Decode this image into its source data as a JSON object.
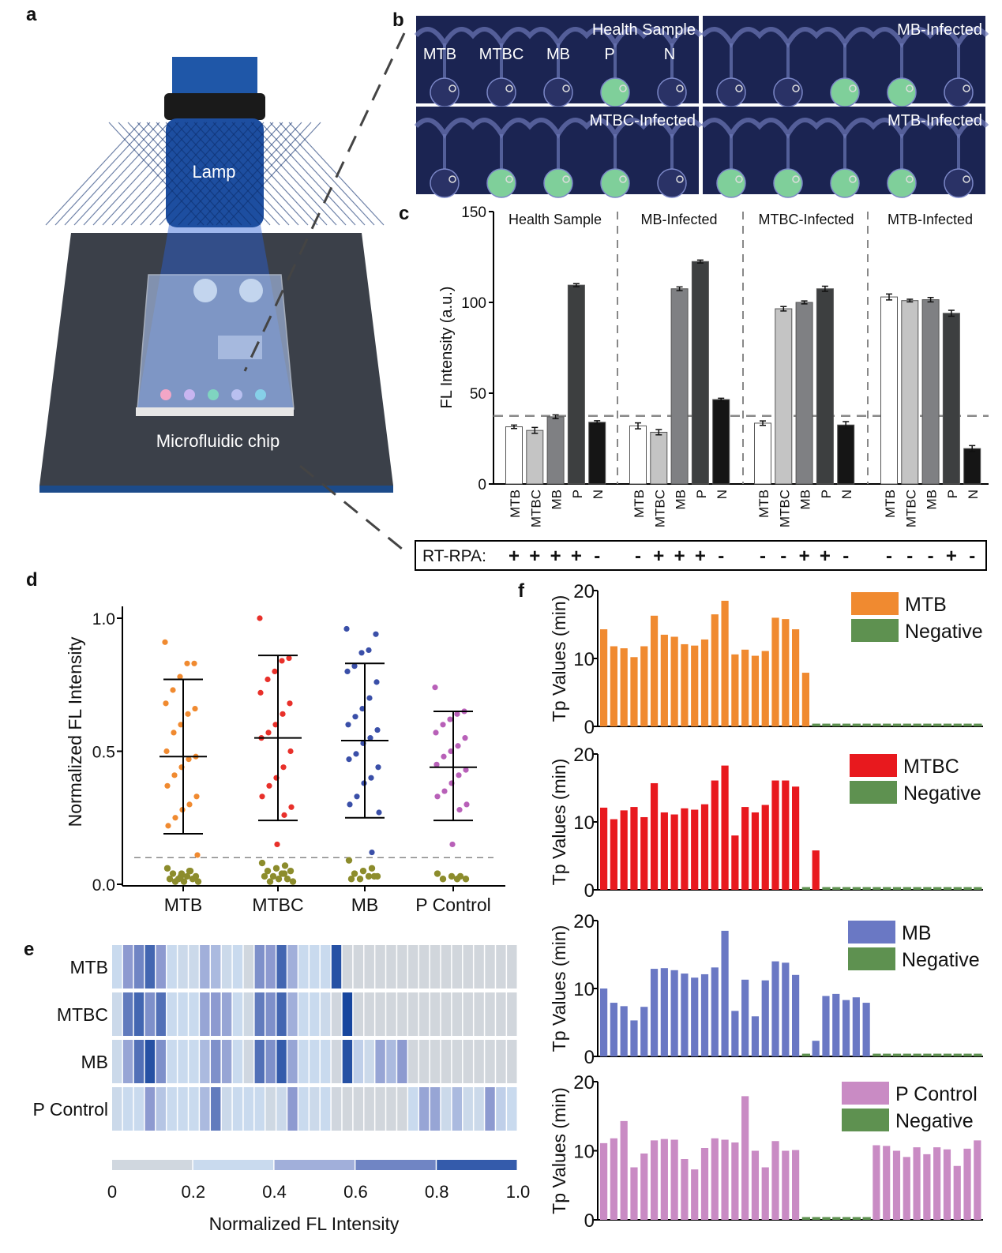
{
  "panel_letters": {
    "a": "a",
    "b": "b",
    "c": "c",
    "d": "d",
    "e": "e",
    "f": "f"
  },
  "panel_a": {
    "lamp_label": "Lamp",
    "chip_label": "Microfluidic chip"
  },
  "panel_b": {
    "well_labels": [
      "MTB",
      "MTBC",
      "MB",
      "P",
      "N"
    ],
    "tiles": [
      {
        "title": "Health Sample",
        "green_wells": [
          false,
          false,
          false,
          true,
          false
        ]
      },
      {
        "title": "MB-Infected",
        "green_wells": [
          false,
          false,
          true,
          true,
          false
        ]
      },
      {
        "title": "MTBC-Infected",
        "green_wells": [
          false,
          true,
          true,
          true,
          false
        ]
      },
      {
        "title": "MTB-Infected",
        "green_wells": [
          true,
          true,
          true,
          true,
          false
        ]
      }
    ]
  },
  "chart_data": [
    {
      "panel": "c",
      "type": "bar",
      "ylabel": "FL Intensity (a.u.)",
      "ylim": [
        0,
        150
      ],
      "yticks": [
        0,
        50,
        100,
        150
      ],
      "threshold": 37.5,
      "categories": [
        "MTB",
        "MTBC",
        "MB",
        "P",
        "N"
      ],
      "bar_colors": [
        "#ffffff",
        "#c4c4c4",
        "#7f8083",
        "#3d3f40",
        "#151515"
      ],
      "row_label": "RT-RPA:",
      "groups": [
        {
          "name": "Health Sample",
          "values": [
            31.5,
            29.5,
            37,
            109.5,
            34
          ],
          "errors": [
            0.5,
            1.2,
            0.6,
            0.4,
            0.4
          ],
          "rt_rpa": [
            "+",
            "+",
            "+",
            "+",
            "-"
          ]
        },
        {
          "name": "MB-Infected",
          "values": [
            32,
            28.5,
            107.5,
            122.5,
            46.5
          ],
          "errors": [
            1.2,
            1,
            0.6,
            0.4,
            0.3
          ],
          "rt_rpa": [
            "-",
            "+",
            "+",
            "+",
            "-"
          ]
        },
        {
          "name": "MTBC-Infected",
          "values": [
            33.5,
            96.5,
            100,
            107.5,
            32.5
          ],
          "errors": [
            0.8,
            0.8,
            0.4,
            1,
            1.4
          ],
          "rt_rpa": [
            "-",
            "-",
            "+",
            "+",
            "-"
          ]
        },
        {
          "name": "MTB-Infected",
          "values": [
            103,
            101,
            101.5,
            94,
            19.5
          ],
          "errors": [
            1.2,
            0.3,
            0.8,
            1.2,
            1.2
          ],
          "rt_rpa": [
            "-",
            "-",
            "-",
            "+",
            "-"
          ]
        }
      ]
    },
    {
      "panel": "d",
      "type": "scatter",
      "ylabel": "Normalized FL Intensity",
      "ylim": [
        0,
        1.05
      ],
      "yticks": [
        "0.0",
        "0.5",
        "1.0"
      ],
      "threshold": 0.1,
      "negative_color": "#8c8c2c",
      "groups": [
        {
          "name": "MTB",
          "color": "#f08a30",
          "mean": 0.48,
          "sd_low": 0.19,
          "sd_high": 0.77,
          "positives": [
            0.91,
            0.83,
            0.83,
            0.78,
            0.73,
            0.68,
            0.66,
            0.64,
            0.6,
            0.57,
            0.5,
            0.48,
            0.47,
            0.44,
            0.41,
            0.37,
            0.33,
            0.3,
            0.28,
            0.25,
            0.22,
            0.11
          ],
          "negatives": [
            0.06,
            0.05,
            0.04,
            0.04,
            0.03,
            0.03,
            0.02,
            0.02,
            0.02,
            0.01,
            0.01,
            0.01,
            0.05,
            0.03
          ]
        },
        {
          "name": "MTBC",
          "color": "#e8302a",
          "mean": 0.55,
          "sd_low": 0.24,
          "sd_high": 0.86,
          "positives": [
            1.0,
            0.85,
            0.84,
            0.8,
            0.77,
            0.72,
            0.68,
            0.64,
            0.6,
            0.57,
            0.55,
            0.5,
            0.44,
            0.4,
            0.37,
            0.33,
            0.29,
            0.26,
            0.15
          ],
          "negatives": [
            0.08,
            0.07,
            0.06,
            0.05,
            0.05,
            0.04,
            0.03,
            0.03,
            0.02,
            0.02,
            0.01,
            0.01,
            0.04
          ]
        },
        {
          "name": "MB",
          "color": "#3a4fa8",
          "mean": 0.54,
          "sd_low": 0.25,
          "sd_high": 0.83,
          "positives": [
            0.96,
            0.94,
            0.88,
            0.87,
            0.82,
            0.8,
            0.76,
            0.7,
            0.66,
            0.63,
            0.6,
            0.58,
            0.55,
            0.53,
            0.49,
            0.47,
            0.44,
            0.4,
            0.38,
            0.33,
            0.3,
            0.27,
            0.12
          ],
          "negatives": [
            0.09,
            0.06,
            0.05,
            0.04,
            0.03,
            0.03,
            0.02,
            0.02,
            0.03
          ]
        },
        {
          "name": "P Control",
          "color": "#b860b8",
          "mean": 0.44,
          "sd_low": 0.24,
          "sd_high": 0.65,
          "positives": [
            0.74,
            0.65,
            0.64,
            0.62,
            0.6,
            0.57,
            0.55,
            0.52,
            0.5,
            0.48,
            0.45,
            0.43,
            0.41,
            0.38,
            0.35,
            0.33,
            0.3,
            0.28,
            0.15
          ],
          "negatives": [
            0.04,
            0.03,
            0.03,
            0.02,
            0.02,
            0.02
          ]
        }
      ]
    },
    {
      "panel": "e",
      "type": "heatmap",
      "rows": [
        "MTB",
        "MTBC",
        "MB",
        "P Control"
      ],
      "colorbar_label": "Normalized FL Intensity",
      "colorbar_ticks": [
        "0",
        "0.2",
        "0.4",
        "0.6",
        "0.8",
        "1.0"
      ],
      "colorscale": [
        "#d3d5d8",
        "#c9daee",
        "#8d9ad0",
        "#17469e"
      ],
      "values": [
        [
          0.3,
          0.6,
          0.7,
          0.85,
          0.6,
          0.3,
          0.25,
          0.25,
          0.5,
          0.45,
          0.25,
          0.3,
          0.1,
          0.65,
          0.6,
          0.85,
          0.5,
          0.3,
          0.3,
          0.3,
          0.95,
          0.05,
          0.05,
          0.05,
          0.05,
          0.05,
          0.05,
          0.05,
          0.05,
          0.05,
          0.05,
          0.05,
          0.05,
          0.05,
          0.05,
          0.05,
          0.05
        ],
        [
          0.25,
          0.75,
          0.85,
          0.65,
          0.8,
          0.3,
          0.3,
          0.3,
          0.55,
          0.6,
          0.55,
          0.3,
          0.15,
          0.75,
          0.65,
          0.85,
          0.5,
          0.3,
          0.3,
          0.25,
          0.08,
          1.0,
          0.05,
          0.05,
          0.05,
          0.05,
          0.05,
          0.05,
          0.05,
          0.05,
          0.05,
          0.05,
          0.05,
          0.05,
          0.05,
          0.05,
          0.05
        ],
        [
          0.25,
          0.55,
          0.8,
          0.95,
          0.65,
          0.3,
          0.3,
          0.3,
          0.45,
          0.65,
          0.55,
          0.3,
          0.12,
          0.8,
          0.65,
          0.9,
          0.55,
          0.3,
          0.3,
          0.3,
          0.08,
          0.95,
          0.35,
          0.25,
          0.55,
          0.45,
          0.6,
          0.05,
          0.05,
          0.05,
          0.05,
          0.05,
          0.05,
          0.05,
          0.05,
          0.05,
          0.05
        ],
        [
          0.25,
          0.3,
          0.3,
          0.6,
          0.4,
          0.3,
          0.3,
          0.3,
          0.45,
          0.75,
          0.25,
          0.3,
          0.3,
          0.3,
          0.15,
          0.25,
          0.6,
          0.3,
          0.25,
          0.3,
          0.08,
          0.05,
          0.05,
          0.05,
          0.05,
          0.05,
          0.05,
          0.3,
          0.55,
          0.55,
          0.25,
          0.45,
          0.25,
          0.25,
          0.6,
          0.35,
          0.3
        ]
      ]
    },
    {
      "panel": "f",
      "type": "bar",
      "ylabel": "Tp Values (min)",
      "ylim": [
        0,
        20
      ],
      "yticks": [
        0,
        10,
        20
      ],
      "negative_label": "Negative",
      "negative_color": "#5e9150",
      "subplots": [
        {
          "name": "MTB",
          "color": "#f08a30",
          "positive": [
            14.3,
            11.8,
            11.5,
            10.2,
            11.8,
            16.3,
            13.5,
            13.2,
            12.1,
            11.9,
            12.8,
            16.5,
            18.5,
            10.6,
            11.3,
            10.4,
            11.1,
            16,
            15.8,
            14.3,
            7.9,
            null,
            null,
            null,
            null,
            null,
            null,
            null,
            null,
            null,
            null,
            null,
            null,
            null,
            null,
            null,
            null,
            null
          ],
          "negative": [
            null,
            null,
            null,
            null,
            null,
            null,
            null,
            null,
            null,
            null,
            null,
            null,
            null,
            null,
            null,
            null,
            null,
            null,
            null,
            null,
            null,
            0.4,
            0.4,
            0.4,
            0.4,
            0.4,
            0.4,
            0.4,
            0.4,
            0.4,
            0.4,
            0.4,
            0.4,
            0.4,
            0.4,
            0.4,
            0.4,
            0.4
          ]
        },
        {
          "name": "MTBC",
          "color": "#e8191e",
          "positive": [
            12.1,
            10.4,
            11.7,
            12.2,
            10.7,
            15.7,
            11.4,
            11.1,
            12,
            11.8,
            12.6,
            16.1,
            18.3,
            8,
            12.2,
            11.4,
            12.5,
            16.1,
            16.1,
            15.2,
            null,
            5.8,
            null,
            null,
            null,
            null,
            null,
            null,
            null,
            null,
            null,
            null,
            null,
            null,
            null,
            null,
            null,
            null
          ],
          "negative": [
            null,
            null,
            null,
            null,
            null,
            null,
            null,
            null,
            null,
            null,
            null,
            null,
            null,
            null,
            null,
            null,
            null,
            null,
            null,
            null,
            0.4,
            null,
            0.4,
            0.4,
            0.4,
            0.4,
            0.4,
            0.4,
            0.4,
            0.4,
            0.4,
            0.4,
            0.4,
            0.4,
            0.4,
            0.4,
            0.4,
            0.4
          ]
        },
        {
          "name": "MB",
          "color": "#6a78c4",
          "positive": [
            10,
            7.9,
            7.4,
            5.3,
            7.3,
            12.9,
            13,
            12.7,
            12.2,
            11.6,
            12.1,
            13.1,
            18.5,
            6.7,
            11.3,
            5.9,
            11.2,
            14,
            13.8,
            12,
            null,
            2.3,
            8.9,
            9.2,
            8.3,
            8.7,
            7.9,
            null,
            null,
            null,
            null,
            null,
            null,
            null,
            null,
            null,
            null,
            null
          ],
          "negative": [
            null,
            null,
            null,
            null,
            null,
            null,
            null,
            null,
            null,
            null,
            null,
            null,
            null,
            null,
            null,
            null,
            null,
            null,
            null,
            null,
            0.4,
            null,
            null,
            null,
            null,
            null,
            null,
            0.4,
            0.4,
            0.4,
            0.4,
            0.4,
            0.4,
            0.4,
            0.4,
            0.4,
            0.4,
            0.4
          ]
        },
        {
          "name": "P Control",
          "color": "#c98bc4",
          "positive": [
            11.1,
            11.8,
            14.3,
            7.6,
            9.6,
            11.5,
            11.7,
            11.6,
            8.8,
            7.3,
            10.4,
            11.8,
            11.6,
            11.2,
            17.9,
            10,
            7.6,
            11.4,
            10,
            10.1,
            null,
            null,
            null,
            null,
            null,
            null,
            null,
            10.8,
            10.7,
            10,
            9.1,
            10.5,
            9.5,
            10.5,
            10.2,
            7.8,
            10.3,
            11.5
          ],
          "negative": [
            null,
            null,
            null,
            null,
            null,
            null,
            null,
            null,
            null,
            null,
            null,
            null,
            null,
            null,
            null,
            null,
            null,
            null,
            null,
            null,
            0.4,
            0.4,
            0.4,
            0.4,
            0.4,
            0.4,
            0.4,
            null,
            null,
            null,
            null,
            null,
            null,
            null,
            null,
            null,
            null,
            null
          ]
        }
      ]
    }
  ]
}
